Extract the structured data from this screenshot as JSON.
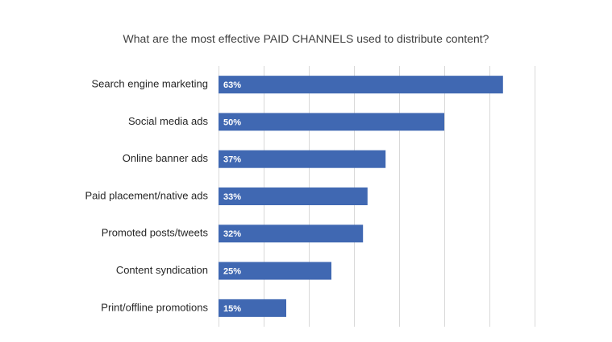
{
  "chart_data": {
    "type": "bar",
    "orientation": "horizontal",
    "title": "What are the most effective PAID CHANNELS used to distribute content?",
    "categories": [
      "Search engine marketing",
      "Social media ads",
      "Online banner ads",
      "Paid placement/native ads",
      "Promoted posts/tweets",
      "Content syndication",
      "Print/offline promotions"
    ],
    "values": [
      63,
      50,
      37,
      33,
      32,
      25,
      15
    ],
    "data_labels": [
      "63%",
      "50%",
      "37%",
      "33%",
      "32%",
      "25%",
      "15%"
    ],
    "unit": "%",
    "xlim": [
      0,
      70
    ],
    "grid": true,
    "bar_color": "#4068b2"
  }
}
